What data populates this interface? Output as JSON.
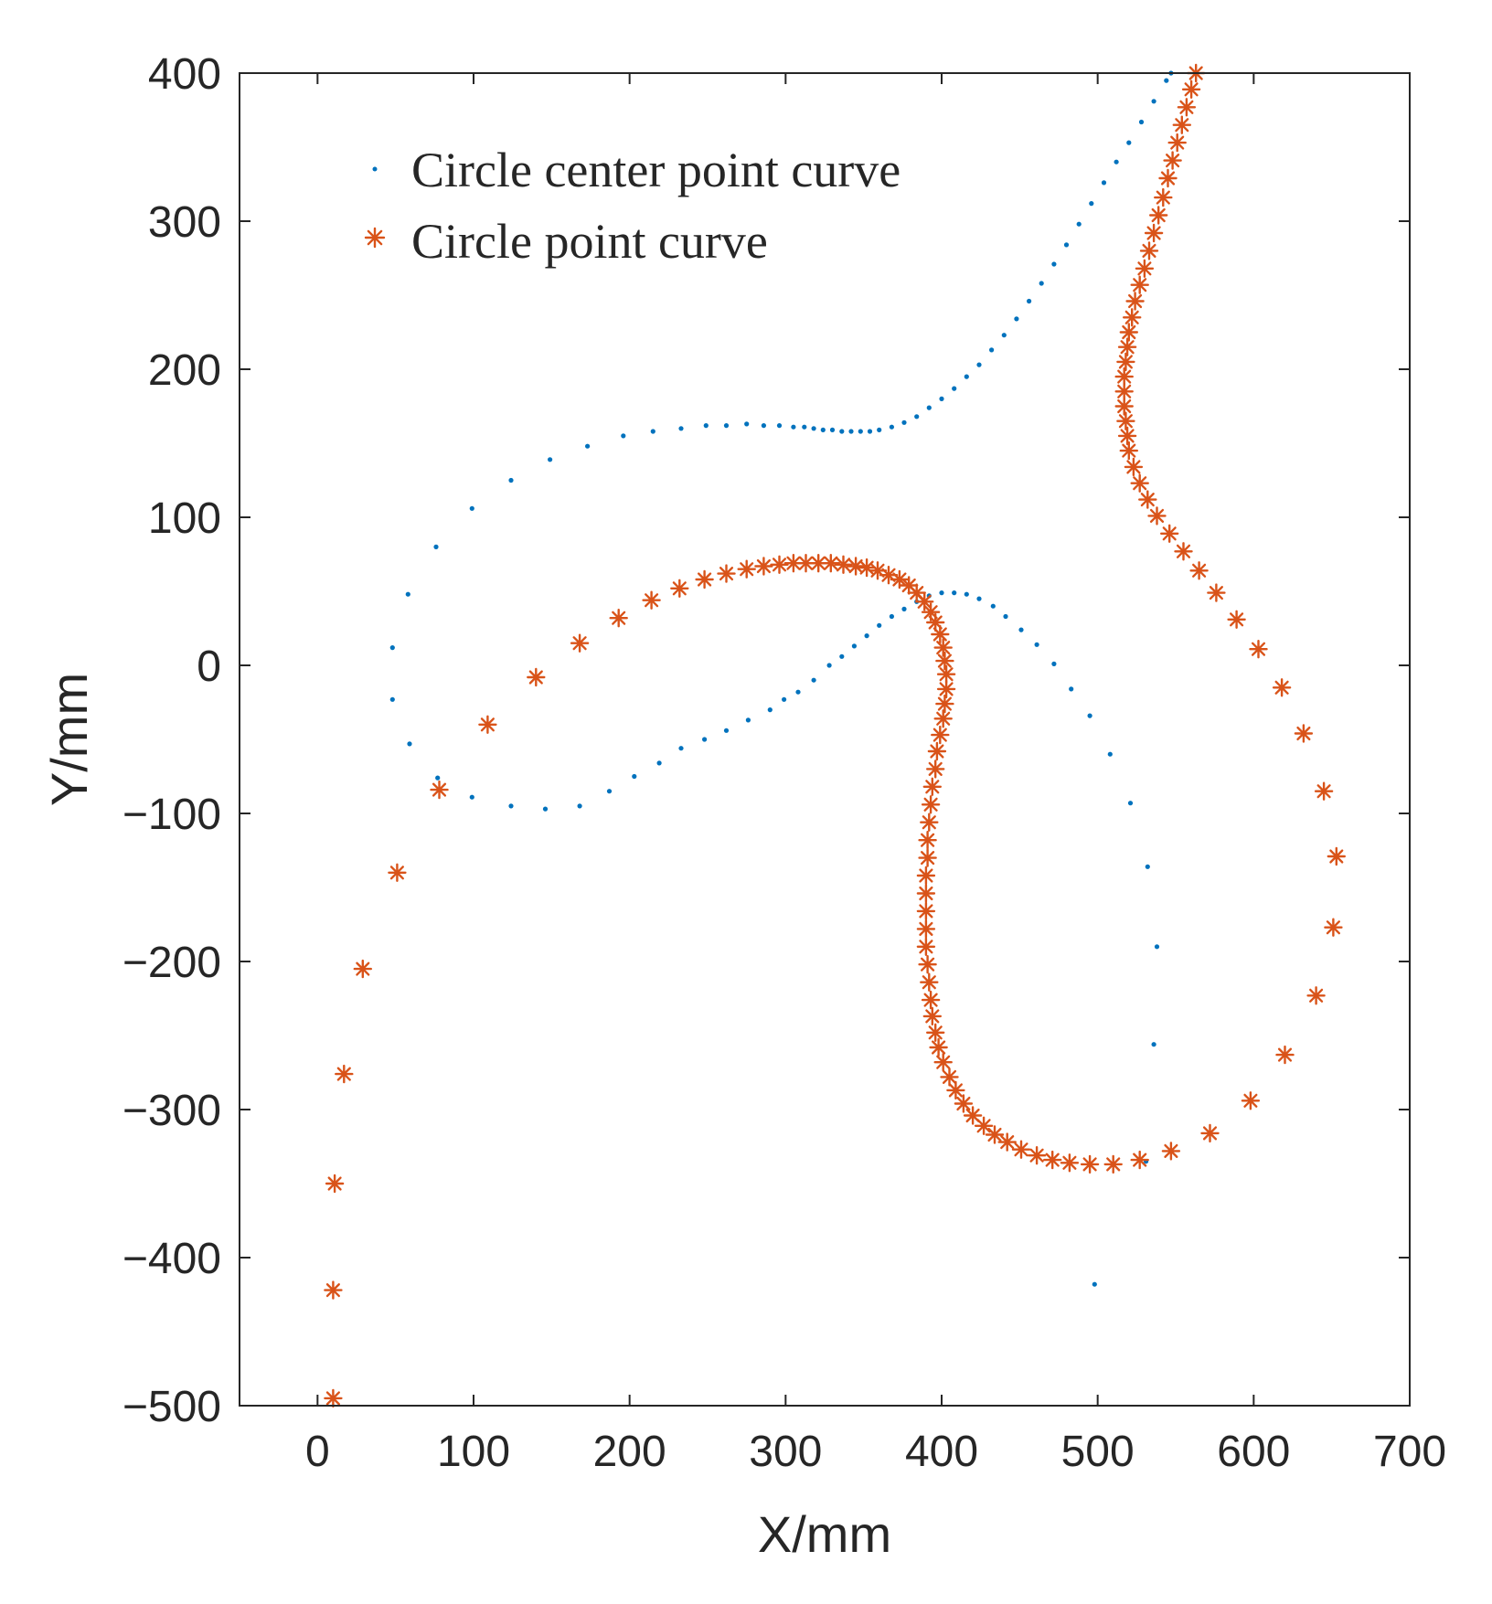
{
  "chart_data": {
    "type": "scatter",
    "title": "",
    "xlabel": "X/mm",
    "ylabel": "Y/mm",
    "xlim": [
      -50,
      700
    ],
    "ylim": [
      -500,
      400
    ],
    "xticks": [
      0,
      100,
      200,
      300,
      400,
      500,
      600,
      700
    ],
    "yticks": [
      -500,
      -400,
      -300,
      -200,
      -100,
      0,
      100,
      200,
      300,
      400
    ],
    "xtick_labels": [
      "0",
      "100",
      "200",
      "300",
      "400",
      "500",
      "600",
      "700"
    ],
    "ytick_labels": [
      "−500",
      "−400",
      "−300",
      "−200",
      "−100",
      "0",
      "100",
      "200",
      "300",
      "400"
    ],
    "grid": false,
    "legend_position": "top-left",
    "series": [
      {
        "name": "Circle center point curve",
        "marker": "dot",
        "color": "#0072BD",
        "points": [
          [
            498,
            -418
          ],
          [
            531,
            -335
          ],
          [
            536,
            -256
          ],
          [
            538,
            -190
          ],
          [
            532,
            -136
          ],
          [
            521,
            -93
          ],
          [
            508,
            -60
          ],
          [
            495,
            -34
          ],
          [
            483,
            -16
          ],
          [
            472,
            1
          ],
          [
            461,
            14
          ],
          [
            451,
            24
          ],
          [
            441,
            33
          ],
          [
            433,
            40
          ],
          [
            424,
            45
          ],
          [
            416,
            48
          ],
          [
            408,
            49
          ],
          [
            400,
            49
          ],
          [
            392,
            47
          ],
          [
            384,
            43
          ],
          [
            376,
            38
          ],
          [
            368,
            33
          ],
          [
            360,
            27
          ],
          [
            352,
            20
          ],
          [
            344,
            13
          ],
          [
            336,
            6
          ],
          [
            328,
            0
          ],
          [
            318,
            -10
          ],
          [
            308,
            -18
          ],
          [
            299,
            -23
          ],
          [
            290,
            -30
          ],
          [
            276,
            -37
          ],
          [
            262,
            -44
          ],
          [
            248,
            -50
          ],
          [
            233,
            -56
          ],
          [
            219,
            -66
          ],
          [
            203,
            -75
          ],
          [
            187,
            -85
          ],
          [
            168,
            -95
          ],
          [
            146,
            -97
          ],
          [
            124,
            -95
          ],
          [
            99,
            -89
          ],
          [
            77,
            -76
          ],
          [
            59,
            -53
          ],
          [
            48,
            -23
          ],
          [
            48,
            12
          ],
          [
            58,
            48
          ],
          [
            76,
            80
          ],
          [
            99,
            106
          ],
          [
            124,
            125
          ],
          [
            149,
            139
          ],
          [
            173,
            148
          ],
          [
            196,
            155
          ],
          [
            215,
            158
          ],
          [
            233,
            160
          ],
          [
            249,
            162
          ],
          [
            262,
            162
          ],
          [
            275,
            163
          ],
          [
            286,
            162
          ],
          [
            296,
            162
          ],
          [
            305,
            161
          ],
          [
            312,
            161
          ],
          [
            318,
            160
          ],
          [
            324,
            159
          ],
          [
            330,
            159
          ],
          [
            336,
            158
          ],
          [
            342,
            158
          ],
          [
            348,
            158
          ],
          [
            354,
            158
          ],
          [
            360,
            159
          ],
          [
            368,
            161
          ],
          [
            376,
            164
          ],
          [
            384,
            168
          ],
          [
            392,
            174
          ],
          [
            400,
            180
          ],
          [
            408,
            187
          ],
          [
            416,
            195
          ],
          [
            424,
            203
          ],
          [
            432,
            213
          ],
          [
            440,
            223
          ],
          [
            448,
            234
          ],
          [
            456,
            246
          ],
          [
            464,
            258
          ],
          [
            472,
            271
          ],
          [
            480,
            284
          ],
          [
            488,
            298
          ],
          [
            496,
            312
          ],
          [
            504,
            326
          ],
          [
            512,
            340
          ],
          [
            520,
            353
          ],
          [
            528,
            367
          ],
          [
            536,
            381
          ],
          [
            544,
            395
          ],
          [
            547,
            400
          ]
        ]
      },
      {
        "name": "Circle point curve",
        "marker": "asterisk",
        "color": "#D95319",
        "points": [
          [
            10,
            -495
          ],
          [
            10,
            -422
          ],
          [
            11,
            -350
          ],
          [
            17,
            -276
          ],
          [
            29,
            -205
          ],
          [
            51,
            -140
          ],
          [
            78,
            -84
          ],
          [
            109,
            -40
          ],
          [
            140,
            -8
          ],
          [
            168,
            15
          ],
          [
            193,
            32
          ],
          [
            214,
            44
          ],
          [
            232,
            52
          ],
          [
            248,
            58
          ],
          [
            262,
            62
          ],
          [
            275,
            65
          ],
          [
            286,
            67
          ],
          [
            296,
            68
          ],
          [
            305,
            69
          ],
          [
            313,
            69
          ],
          [
            321,
            69
          ],
          [
            329,
            69
          ],
          [
            337,
            68
          ],
          [
            345,
            67
          ],
          [
            352,
            66
          ],
          [
            359,
            64
          ],
          [
            366,
            61
          ],
          [
            373,
            58
          ],
          [
            379,
            54
          ],
          [
            384,
            49
          ],
          [
            389,
            43
          ],
          [
            393,
            36
          ],
          [
            396,
            29
          ],
          [
            399,
            21
          ],
          [
            401,
            12
          ],
          [
            402,
            3
          ],
          [
            403,
            -6
          ],
          [
            403,
            -16
          ],
          [
            402,
            -26
          ],
          [
            401,
            -36
          ],
          [
            399,
            -47
          ],
          [
            397,
            -58
          ],
          [
            396,
            -70
          ],
          [
            394,
            -82
          ],
          [
            393,
            -94
          ],
          [
            392,
            -106
          ],
          [
            391,
            -118
          ],
          [
            391,
            -130
          ],
          [
            390,
            -142
          ],
          [
            390,
            -154
          ],
          [
            390,
            -166
          ],
          [
            390,
            -178
          ],
          [
            390,
            -190
          ],
          [
            391,
            -202
          ],
          [
            392,
            -214
          ],
          [
            393,
            -226
          ],
          [
            394,
            -237
          ],
          [
            396,
            -248
          ],
          [
            398,
            -258
          ],
          [
            401,
            -268
          ],
          [
            405,
            -278
          ],
          [
            409,
            -287
          ],
          [
            414,
            -296
          ],
          [
            420,
            -304
          ],
          [
            427,
            -311
          ],
          [
            434,
            -317
          ],
          [
            442,
            -322
          ],
          [
            451,
            -327
          ],
          [
            461,
            -331
          ],
          [
            471,
            -334
          ],
          [
            482,
            -336
          ],
          [
            495,
            -337
          ],
          [
            510,
            -337
          ],
          [
            527,
            -334
          ],
          [
            547,
            -328
          ],
          [
            572,
            -316
          ],
          [
            598,
            -294
          ],
          [
            620,
            -263
          ],
          [
            640,
            -223
          ],
          [
            651,
            -177
          ],
          [
            653,
            -129
          ],
          [
            645,
            -85
          ],
          [
            632,
            -46
          ],
          [
            618,
            -15
          ],
          [
            603,
            11
          ],
          [
            589,
            31
          ],
          [
            576,
            49
          ],
          [
            565,
            64
          ],
          [
            555,
            77
          ],
          [
            546,
            89
          ],
          [
            538,
            101
          ],
          [
            532,
            112
          ],
          [
            527,
            123
          ],
          [
            523,
            134
          ],
          [
            520,
            145
          ],
          [
            519,
            155
          ],
          [
            518,
            165
          ],
          [
            517,
            175
          ],
          [
            517,
            185
          ],
          [
            517,
            195
          ],
          [
            518,
            205
          ],
          [
            519,
            215
          ],
          [
            520,
            225
          ],
          [
            522,
            235
          ],
          [
            524,
            246
          ],
          [
            527,
            257
          ],
          [
            530,
            268
          ],
          [
            533,
            280
          ],
          [
            536,
            292
          ],
          [
            539,
            304
          ],
          [
            542,
            316
          ],
          [
            545,
            329
          ],
          [
            548,
            341
          ],
          [
            551,
            353
          ],
          [
            554,
            365
          ],
          [
            557,
            377
          ],
          [
            560,
            389
          ],
          [
            563,
            400
          ]
        ]
      }
    ]
  }
}
